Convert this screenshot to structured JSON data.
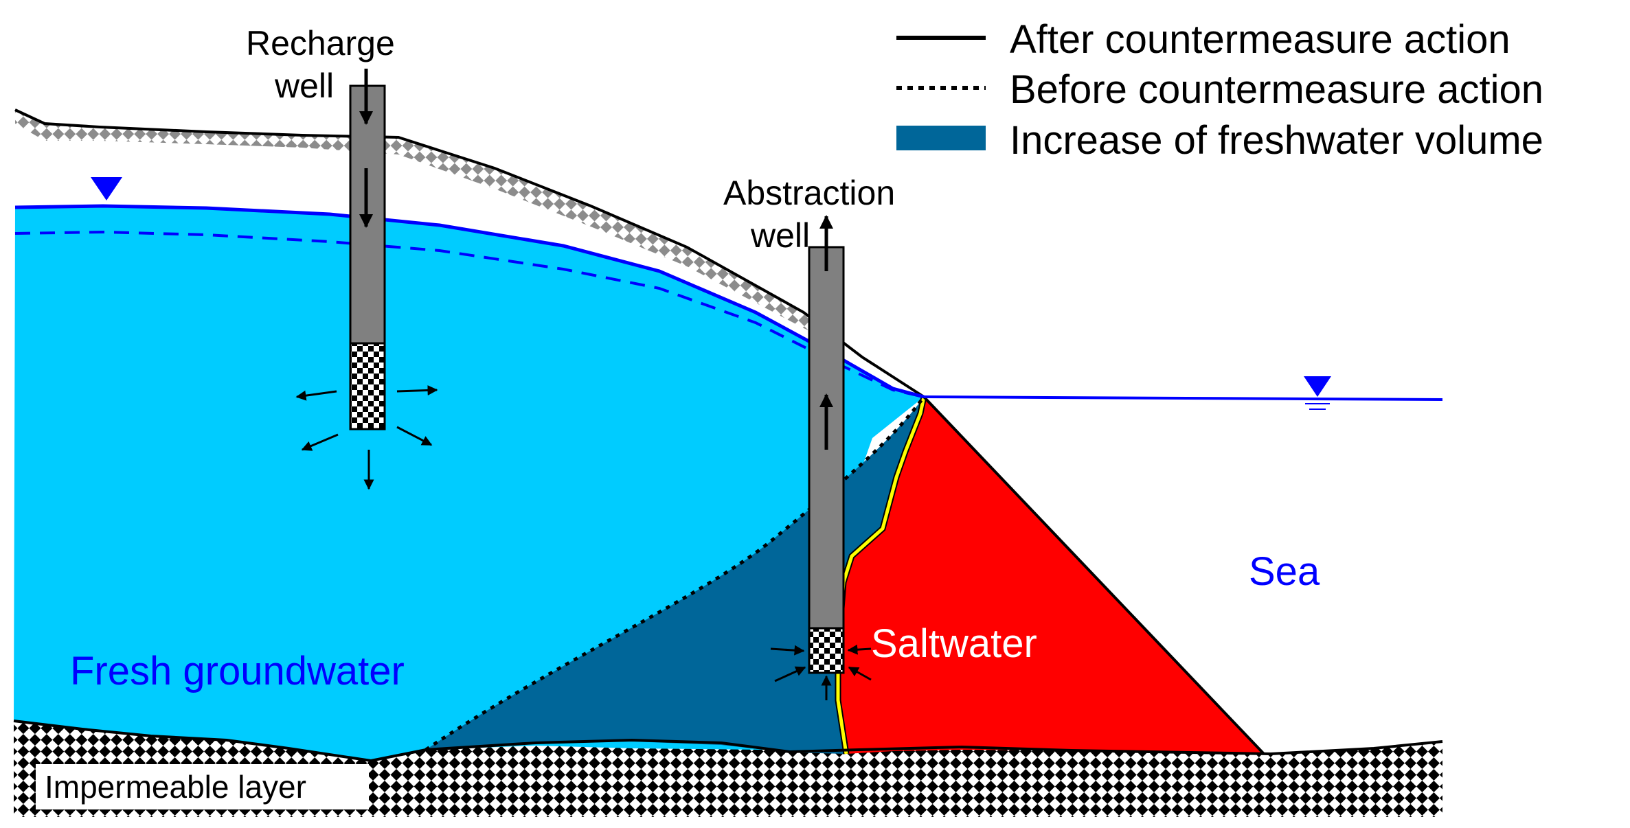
{
  "legend": {
    "after": "After countermeasure action",
    "before": "Before countermeasure action",
    "increase": "Increase of freshwater volume"
  },
  "labels": {
    "recharge_well": [
      "Recharge",
      "well"
    ],
    "abstraction_well": [
      "Abstraction",
      "well"
    ],
    "fresh_groundwater": "Fresh groundwater",
    "saltwater": "Saltwater",
    "sea": "Sea",
    "impermeable_layer": "Impermeable layer"
  },
  "colors": {
    "fresh_groundwater": "#00CCFF",
    "increase_freshwater": "#006699",
    "saltwater": "#FF0000",
    "interface": "#FFFF00",
    "water_table": "#0000FF",
    "well_casing": "#808080",
    "text_blue": "#0000FF",
    "text_white": "#FFFFFF"
  },
  "icons": {
    "water_table_marker": "inverted-triangle",
    "flow_arrow": "arrow",
    "well_screen": "checkerboard"
  }
}
